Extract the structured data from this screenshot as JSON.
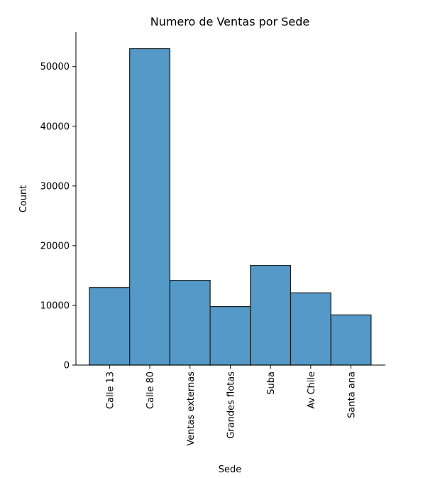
{
  "chart_data": {
    "type": "bar",
    "title": "Numero de Ventas por Sede",
    "xlabel": "Sede",
    "ylabel": "Count",
    "categories": [
      "Calle 13",
      "Calle 80",
      "Ventas externas",
      "Grandes flotas",
      "Suba",
      "Av Chile",
      "Santa ana"
    ],
    "values": [
      13000,
      53000,
      14200,
      9800,
      16700,
      12100,
      8400
    ],
    "yticks": [
      0,
      10000,
      20000,
      30000,
      40000,
      50000
    ],
    "ytick_labels": [
      "0",
      "10000",
      "20000",
      "30000",
      "40000",
      "50000"
    ],
    "ylim": [
      0,
      55800
    ],
    "grid": false,
    "bar_color": "#5499c7",
    "edge_color": "#1a1a1a"
  }
}
